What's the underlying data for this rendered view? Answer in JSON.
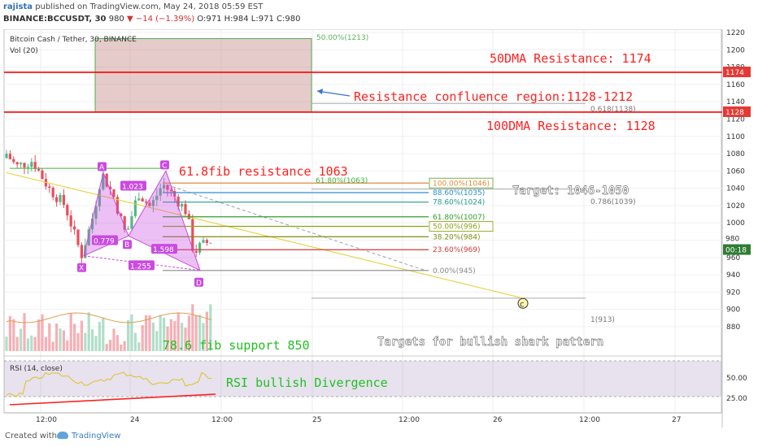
{
  "header": {
    "author": "rajista",
    "published_text": "published on TradingView.com, May 24, 2018 05:59 EST",
    "symbol_line": "BINANCE:BCCUSDT, 30",
    "last": "980",
    "change": "−14 (−1.39%)",
    "ohlc": "O:971 H:984 L:971 C:980"
  },
  "chart_legend": {
    "title": "Bitcoin Cash / Tether, 30, BINANCE",
    "volume": "Vol (20)",
    "rsi": "RSI (14, close)"
  },
  "annotations": {
    "dma50": "50DMA Resistance: 1174",
    "dma100": "100DMA Resistance: 1128",
    "confluence": "Resistance confluence region:1128-1212",
    "fib_res": "61.8fib resistance 1063",
    "target": "Target: 1046-1050",
    "fib_sup": "78.6 fib support 850",
    "shark": "Targets for bullish shark pattern",
    "rsi_div": "RSI bullish Divergence",
    "box_top": "50.00%(1213)",
    "fib618_big": "0.618(1138)",
    "fib786_big": "0.786(1039)",
    "fib1_big": "1(913)",
    "fib618_small": "61.80%(1063)"
  },
  "pattern": {
    "points": [
      "X",
      "A",
      "B",
      "C",
      "D"
    ],
    "ratios": [
      "0.779",
      "1.023",
      "1.598",
      "1.255"
    ],
    "target_label": "c"
  },
  "fib_levels": [
    {
      "label": "100.00%(1046)",
      "price": 1046,
      "color": "#e08a3c"
    },
    {
      "label": "88.60%(1035)",
      "price": 1035,
      "color": "#2c8fd6"
    },
    {
      "label": "78.60%(1024)",
      "price": 1024,
      "color": "#1e9e8a"
    },
    {
      "label": "61.80%(1007)",
      "price": 1007,
      "color": "#2e9e2e"
    },
    {
      "label": "50.00%(996)",
      "price": 996,
      "color": "#8aa61a"
    },
    {
      "label": "38.20%(984)",
      "price": 984,
      "color": "#7b8c10"
    },
    {
      "label": "23.60%(969)",
      "price": 969,
      "color": "#d33a3a"
    },
    {
      "label": "0.00%(945)",
      "price": 945,
      "color": "#888888"
    }
  ],
  "price_badges": {
    "last": "980",
    "time": "00:18",
    "dma50": "1174",
    "dma100": "1128"
  },
  "colors": {
    "up": "#53b987",
    "down": "#eb4d5c",
    "red_line": "#ff0000",
    "pattern": "#c94be0",
    "yellow": "#e6d23a"
  },
  "chart_data": {
    "type": "candlestick",
    "title": "Bitcoin Cash / Tether, 30, BINANCE",
    "y_ticks": [
      1220,
      1200,
      1180,
      1160,
      1140,
      1120,
      1100,
      1080,
      1060,
      1040,
      1020,
      1000,
      980,
      960,
      940,
      920,
      900,
      880
    ],
    "y_range": [
      870,
      1225
    ],
    "rsi_ticks": [
      50.0,
      25.0
    ],
    "x_ticks": [
      "12:00",
      "24",
      "12:00",
      "25",
      "12:00",
      "26",
      "12:00",
      "27"
    ],
    "horizontal_lines": {
      "dma50": 1174,
      "dma100": 1128
    },
    "confluence_zone": [
      1128,
      1212
    ]
  },
  "footer": {
    "created": "Created with",
    "brand": "TradingView"
  }
}
